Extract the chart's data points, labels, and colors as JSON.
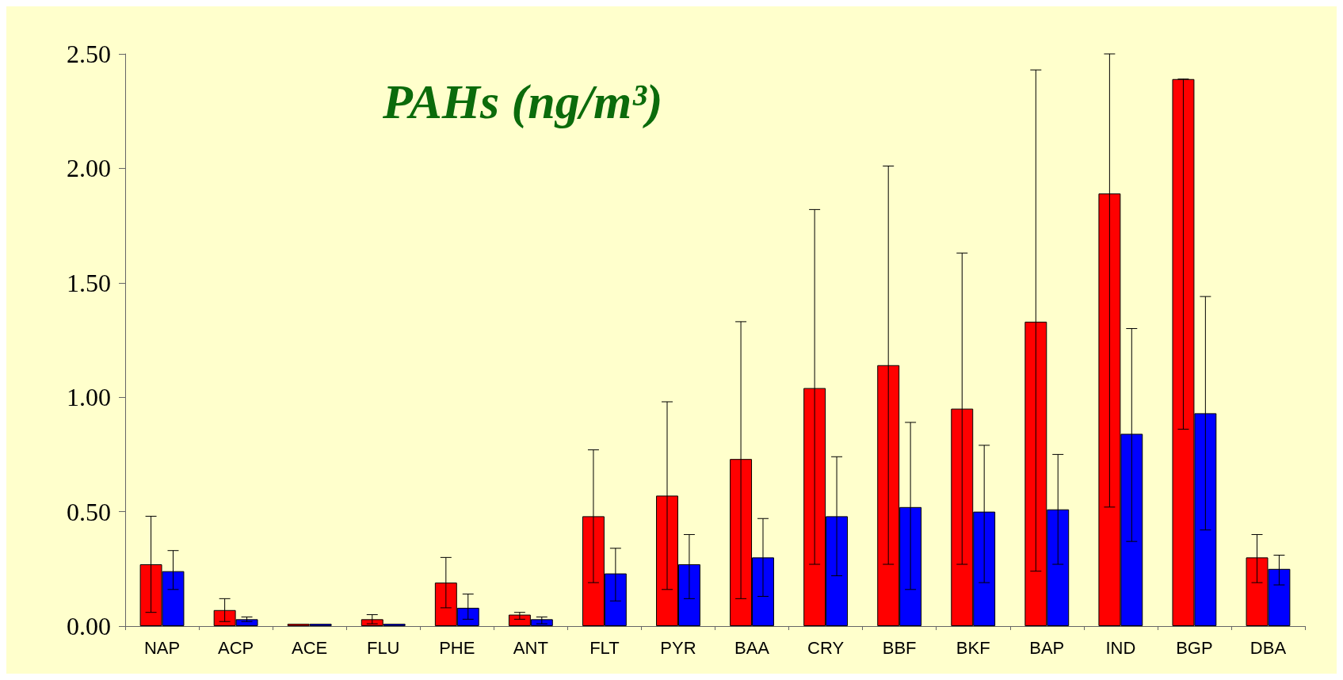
{
  "chart_data": {
    "type": "bar",
    "title": "PAHs (ng/m³)",
    "categories": [
      "NAP",
      "ACP",
      "ACE",
      "FLU",
      "PHE",
      "ANT",
      "FLT",
      "PYR",
      "BAA",
      "CRY",
      "BBF",
      "BKF",
      "BAP",
      "IND",
      "BGP",
      "DBA"
    ],
    "series": [
      {
        "color": "#ff0000",
        "values": [
          0.27,
          0.07,
          0.01,
          0.03,
          0.19,
          0.05,
          0.48,
          0.57,
          0.73,
          1.04,
          1.14,
          0.95,
          1.33,
          1.89,
          2.39,
          0.3
        ],
        "errors": [
          [
            0.06,
            0.48
          ],
          [
            0.02,
            0.12
          ],
          null,
          [
            0.01,
            0.05
          ],
          [
            0.08,
            0.3
          ],
          [
            0.03,
            0.06
          ],
          [
            0.19,
            0.77
          ],
          [
            0.16,
            0.98
          ],
          [
            0.12,
            1.33
          ],
          [
            0.27,
            1.82
          ],
          [
            0.27,
            2.01
          ],
          [
            0.27,
            1.63
          ],
          [
            0.24,
            2.43
          ],
          [
            0.52,
            2.5
          ],
          [
            0.86,
            2.39
          ],
          [
            0.19,
            0.4
          ]
        ]
      },
      {
        "color": "#0000ff",
        "values": [
          0.24,
          0.03,
          0.01,
          0.01,
          0.08,
          0.03,
          0.23,
          0.27,
          0.3,
          0.48,
          0.52,
          0.5,
          0.51,
          0.84,
          0.93,
          0.25
        ],
        "errors": [
          [
            0.16,
            0.33
          ],
          [
            0.02,
            0.04
          ],
          null,
          null,
          [
            0.03,
            0.14
          ],
          [
            0.01,
            0.04
          ],
          [
            0.11,
            0.34
          ],
          [
            0.12,
            0.4
          ],
          [
            0.13,
            0.47
          ],
          [
            0.22,
            0.74
          ],
          [
            0.16,
            0.89
          ],
          [
            0.19,
            0.79
          ],
          [
            0.27,
            0.75
          ],
          [
            0.37,
            1.3
          ],
          [
            0.42,
            1.44
          ],
          [
            0.18,
            0.31
          ]
        ]
      }
    ],
    "ylim": [
      0,
      2.5
    ],
    "yticks": [
      {
        "value": 0,
        "label": "0.00"
      },
      {
        "value": 0.5,
        "label": "0.50"
      },
      {
        "value": 1,
        "label": "1.00"
      },
      {
        "value": 1.5,
        "label": "1.50"
      },
      {
        "value": 2,
        "label": "2.00"
      },
      {
        "value": 2.5,
        "label": "2.50"
      }
    ],
    "grid": false
  }
}
